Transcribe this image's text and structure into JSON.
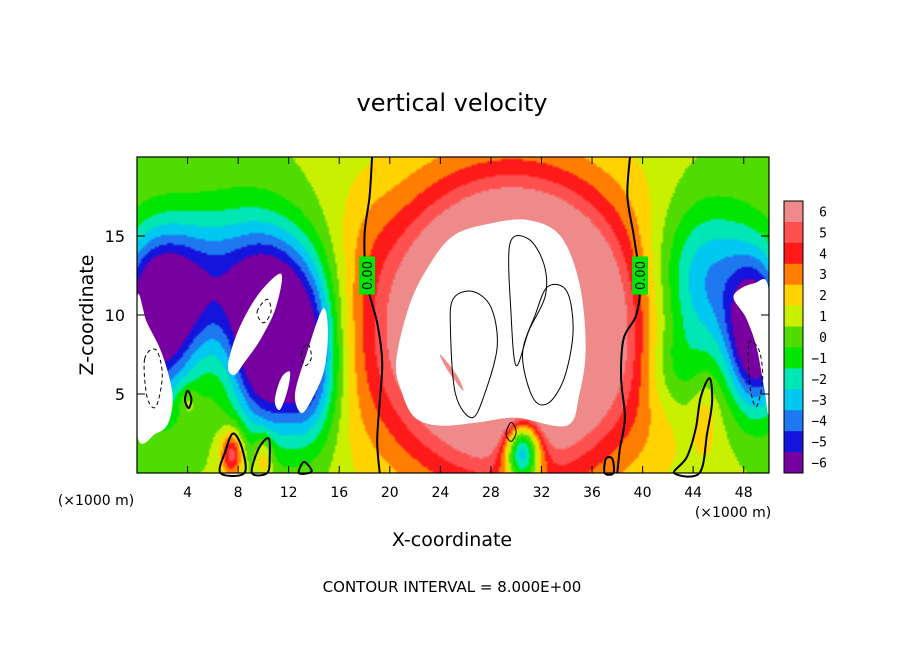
{
  "chart_data": {
    "type": "heatmap",
    "title": "vertical velocity",
    "xlabel": "X-coordinate",
    "ylabel": "Z-coordinate",
    "x_unit_left": "(×1000 m)",
    "x_unit_right": "(×1000 m)",
    "xlim": [
      0,
      50
    ],
    "ylim": [
      0,
      20
    ],
    "x_ticks": [
      4,
      8,
      12,
      16,
      20,
      24,
      28,
      32,
      36,
      40,
      44,
      48
    ],
    "y_ticks": [
      5,
      10,
      15
    ],
    "contour_interval_text": "CONTOUR INTERVAL = 8.000E+00",
    "contour_labels": [
      "0.00",
      "0.00"
    ],
    "colorbar": {
      "levels": [
        6,
        5,
        4,
        3,
        2,
        1,
        0,
        -1,
        -2,
        -3,
        -4,
        -5,
        -6
      ],
      "colors": [
        "#ee8a8a",
        "#ff5050",
        "#ff1a1a",
        "#ff7d00",
        "#ffd200",
        "#c8f000",
        "#50dc00",
        "#00e600",
        "#00e6b4",
        "#00c8f0",
        "#1e78f0",
        "#1414dc",
        "#7800a0"
      ],
      "over_color": "#ffffff"
    },
    "blobs": [
      {
        "x": 29.5,
        "z": 9.0,
        "rx": 10.8,
        "rz": 9.2,
        "w": 7.5
      },
      {
        "x": 29.5,
        "z": 9.0,
        "rx": 9.5,
        "rz": 8.0,
        "w": 4.0
      },
      {
        "x": 30.0,
        "z": 10.5,
        "rx": 6.0,
        "rz": 6.0,
        "w": 5.0
      },
      {
        "x": 30.5,
        "z": 1.5,
        "rx": 1.5,
        "rz": 2.2,
        "w": -9.0
      },
      {
        "x": 45.0,
        "z": 12.0,
        "rx": 4.5,
        "rz": 5.0,
        "w": -5.0
      },
      {
        "x": 49.0,
        "z": 8.5,
        "rx": 2.2,
        "rz": 4.5,
        "w": -8.0
      },
      {
        "x": 42.5,
        "z": 6.5,
        "rx": 2.5,
        "rz": 3.0,
        "w": -2.2
      },
      {
        "x": 1.5,
        "z": 9.5,
        "rx": 3.0,
        "rz": 5.0,
        "w": -7.0
      },
      {
        "x": 3.5,
        "z": 12.0,
        "rx": 4.0,
        "rz": 4.0,
        "w": -3.5
      },
      {
        "x": 8.5,
        "z": 12.0,
        "rx": 4.5,
        "rz": 5.0,
        "w": -4.0
      },
      {
        "x": 10.0,
        "z": 7.5,
        "rx": 2.5,
        "rz": 5.0,
        "w": -7.0
      },
      {
        "x": 13.5,
        "z": 7.0,
        "rx": 2.5,
        "rz": 5.0,
        "w": -7.0
      },
      {
        "x": 12.0,
        "z": 12.0,
        "rx": 3.5,
        "rz": 4.0,
        "w": -2.5
      },
      {
        "x": 7.5,
        "z": 1.2,
        "rx": 0.9,
        "rz": 1.5,
        "w": 4.8
      },
      {
        "x": 10.0,
        "z": 1.0,
        "rx": 0.8,
        "rz": 1.5,
        "w": 2.5
      },
      {
        "x": 4.0,
        "z": 4.5,
        "rx": 0.8,
        "rz": 1.0,
        "w": 1.5
      },
      {
        "x": 45.0,
        "z": 3.5,
        "rx": 1.0,
        "rz": 2.5,
        "w": 1.2
      },
      {
        "x": 18.5,
        "z": 15.0,
        "rx": 2.0,
        "rz": 4.0,
        "w": 0.3
      }
    ],
    "white_regions": [
      {
        "name": "core-updraft",
        "pts": [
          [
            20.5,
            7
          ],
          [
            21.5,
            10.5
          ],
          [
            23,
            13
          ],
          [
            25,
            15
          ],
          [
            28,
            15.8
          ],
          [
            31,
            16
          ],
          [
            33.5,
            15
          ],
          [
            35,
            12
          ],
          [
            35.5,
            8
          ],
          [
            35,
            5
          ],
          [
            34,
            3
          ],
          [
            30,
            3.5
          ],
          [
            27,
            3.2
          ],
          [
            24,
            3
          ],
          [
            22,
            3.5
          ],
          [
            21,
            5
          ]
        ]
      },
      {
        "name": "left-downdraft-a",
        "pts": [
          [
            7.2,
            6.8
          ],
          [
            8,
            9
          ],
          [
            9.6,
            11.3
          ],
          [
            11.4,
            12.6
          ],
          [
            11,
            10.5
          ],
          [
            9.8,
            8.5
          ],
          [
            8.5,
            7
          ],
          [
            7.7,
            6.2
          ]
        ]
      },
      {
        "name": "left-downdraft-b",
        "pts": [
          [
            12.5,
            5
          ],
          [
            13.4,
            7.5
          ],
          [
            14.7,
            10.4
          ],
          [
            15.1,
            9
          ],
          [
            14.8,
            6.5
          ],
          [
            13.8,
            4.6
          ],
          [
            13,
            3.8
          ]
        ]
      },
      {
        "name": "left-downdraft-c",
        "pts": [
          [
            10.9,
            4.6
          ],
          [
            11.4,
            6
          ],
          [
            12.1,
            6.4
          ],
          [
            11.9,
            5.2
          ],
          [
            11.3,
            4
          ]
        ]
      },
      {
        "name": "right-downdraft",
        "pts": [
          [
            47.2,
            11.2
          ],
          [
            48.2,
            9.8
          ],
          [
            49,
            8
          ],
          [
            49.6,
            5.5
          ],
          [
            50,
            4
          ],
          [
            50,
            11.5
          ],
          [
            48.8,
            12
          ]
        ]
      },
      {
        "name": "left-edge-downdraft",
        "pts": [
          [
            0,
            11
          ],
          [
            0.8,
            9.5
          ],
          [
            2,
            7.5
          ],
          [
            2.8,
            5
          ],
          [
            2.5,
            3.2
          ],
          [
            1.5,
            2.5
          ],
          [
            0,
            2.5
          ]
        ]
      }
    ],
    "red_streaks": [
      {
        "name": "left-red-streak",
        "pts": [
          [
            24.0,
            7.5
          ],
          [
            24.5,
            6.6
          ],
          [
            25.8,
            5.2
          ],
          [
            25.3,
            6.2
          ]
        ]
      }
    ],
    "zero_contours": [
      {
        "name": "zero-line-left",
        "pts": [
          [
            18.6,
            20
          ],
          [
            18.4,
            17.5
          ],
          [
            18.0,
            15
          ],
          [
            18.2,
            12
          ],
          [
            19.0,
            9.5
          ],
          [
            19.4,
            7
          ],
          [
            19.2,
            4.5
          ],
          [
            19.0,
            2
          ],
          [
            19.2,
            0
          ]
        ]
      },
      {
        "name": "zero-line-right",
        "pts": [
          [
            39.0,
            20
          ],
          [
            38.8,
            17.5
          ],
          [
            39.3,
            15
          ],
          [
            39.8,
            12
          ],
          [
            39.5,
            10
          ],
          [
            38.5,
            8.5
          ],
          [
            38.3,
            6
          ],
          [
            38.6,
            3.5
          ],
          [
            38.2,
            1.5
          ],
          [
            38.0,
            0
          ]
        ]
      }
    ],
    "thin_contours": [
      {
        "name": "core-contour-a",
        "pts": [
          [
            24.8,
            9
          ],
          [
            25,
            11
          ],
          [
            26.5,
            11.5
          ],
          [
            28,
            10.5
          ],
          [
            28.5,
            8
          ],
          [
            27.5,
            5
          ],
          [
            26.5,
            3.5
          ],
          [
            25.2,
            5
          ]
        ]
      },
      {
        "name": "core-contour-b",
        "pts": [
          [
            29.5,
            14.5
          ],
          [
            31,
            14.8
          ],
          [
            32.2,
            13.2
          ],
          [
            32.3,
            11.2
          ],
          [
            31,
            9
          ],
          [
            30,
            6.8
          ],
          [
            29.6,
            10
          ]
        ]
      },
      {
        "name": "core-contour-c",
        "pts": [
          [
            30.5,
            7.5
          ],
          [
            31.5,
            10
          ],
          [
            32.5,
            11.8
          ],
          [
            34,
            11.5
          ],
          [
            34.5,
            9
          ],
          [
            33.8,
            6
          ],
          [
            32.5,
            4.4
          ],
          [
            31.3,
            4.8
          ]
        ]
      },
      {
        "name": "core-contour-d",
        "pts": [
          [
            29.2,
            2.5
          ],
          [
            29.6,
            3.2
          ],
          [
            30,
            2.6
          ],
          [
            29.6,
            2
          ]
        ]
      }
    ],
    "dashed_contours": [
      {
        "name": "dashed-left-a",
        "pts": [
          [
            9.5,
            10.2
          ],
          [
            10.3,
            11
          ],
          [
            10.6,
            10.2
          ],
          [
            10,
            9.5
          ]
        ]
      },
      {
        "name": "dashed-left-b",
        "pts": [
          [
            13.0,
            7.5
          ],
          [
            13.5,
            8.2
          ],
          [
            13.8,
            7.3
          ],
          [
            13.3,
            6.8
          ]
        ]
      },
      {
        "name": "dashed-left-c",
        "pts": [
          [
            0.6,
            7.2
          ],
          [
            1.5,
            7.8
          ],
          [
            2,
            6.2
          ],
          [
            1.5,
            4.2
          ],
          [
            0.8,
            4.8
          ]
        ]
      },
      {
        "name": "dashed-right",
        "pts": [
          [
            48.4,
            8.2
          ],
          [
            49.2,
            7.8
          ],
          [
            49.5,
            6
          ],
          [
            49,
            4.2
          ],
          [
            48.5,
            5.5
          ]
        ]
      }
    ],
    "bold_contours": [
      {
        "name": "up-contour-x7",
        "pts": [
          [
            6.6,
            0
          ],
          [
            7.0,
            1.4
          ],
          [
            7.6,
            2.5
          ],
          [
            8.3,
            1.6
          ],
          [
            8.5,
            0
          ]
        ]
      },
      {
        "name": "up-contour-x10",
        "pts": [
          [
            9.1,
            0
          ],
          [
            9.6,
            1.5
          ],
          [
            10.4,
            2.2
          ],
          [
            10.5,
            1
          ],
          [
            10.3,
            0
          ]
        ]
      },
      {
        "name": "up-contour-x4",
        "pts": [
          [
            3.8,
            4.6
          ],
          [
            4,
            5.2
          ],
          [
            4.3,
            4.7
          ],
          [
            4.1,
            4.1
          ]
        ]
      },
      {
        "name": "up-contour-x14",
        "pts": [
          [
            12.8,
            0
          ],
          [
            13.2,
            0.7
          ],
          [
            13.8,
            0.2
          ],
          [
            13.6,
            0
          ]
        ]
      },
      {
        "name": "up-contour-x45",
        "pts": [
          [
            42.5,
            0
          ],
          [
            43.5,
            1
          ],
          [
            44.2,
            2.8
          ],
          [
            44.6,
            4.8
          ],
          [
            45.3,
            6
          ],
          [
            45.5,
            4.5
          ],
          [
            45.1,
            2.5
          ],
          [
            44.5,
            0
          ]
        ]
      },
      {
        "name": "up-contour-x37",
        "pts": [
          [
            37,
            0
          ],
          [
            37.1,
            0.9
          ],
          [
            37.6,
            0.9
          ],
          [
            37.7,
            0
          ]
        ]
      }
    ]
  }
}
